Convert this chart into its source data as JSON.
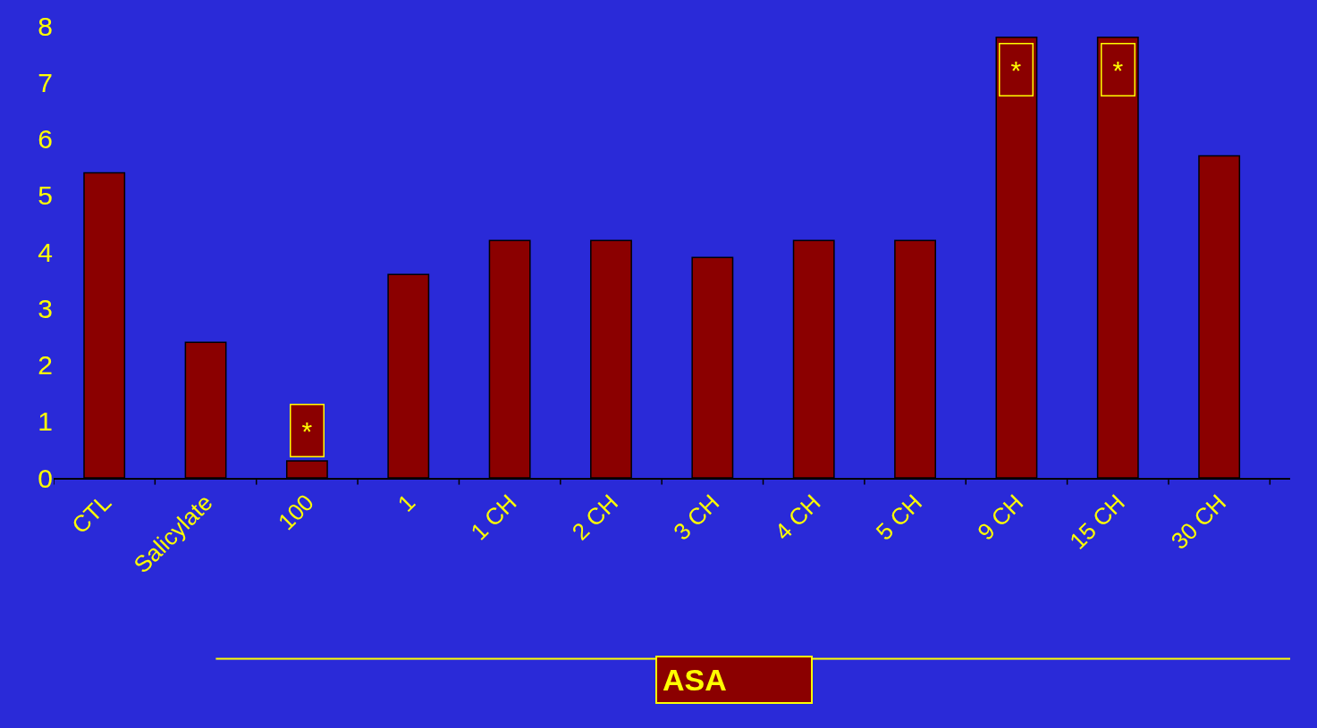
{
  "chart_data": {
    "type": "bar",
    "categories": [
      "CTL",
      "Salicylate",
      "100",
      "1",
      "1 CH",
      "2 CH",
      "3 CH",
      "4 CH",
      "5 CH",
      "9 CH",
      "15 CH",
      "30 CH"
    ],
    "values": [
      5.4,
      2.4,
      0.3,
      3.6,
      4.2,
      4.2,
      3.9,
      4.2,
      4.2,
      7.8,
      7.8,
      5.7
    ],
    "color": "#8b0000",
    "ylim": [
      0,
      8
    ],
    "yticks": [
      0,
      1,
      2,
      3,
      4,
      5,
      6,
      7,
      8
    ],
    "grid": false,
    "legend": false,
    "annotations": [
      {
        "text": "*",
        "x": "100",
        "y": 0.3
      },
      {
        "text": "*",
        "x": "9 CH",
        "y": 7.8
      },
      {
        "text": "*",
        "x": "15 CH",
        "y": 7.8
      },
      "ASA"
    ]
  }
}
